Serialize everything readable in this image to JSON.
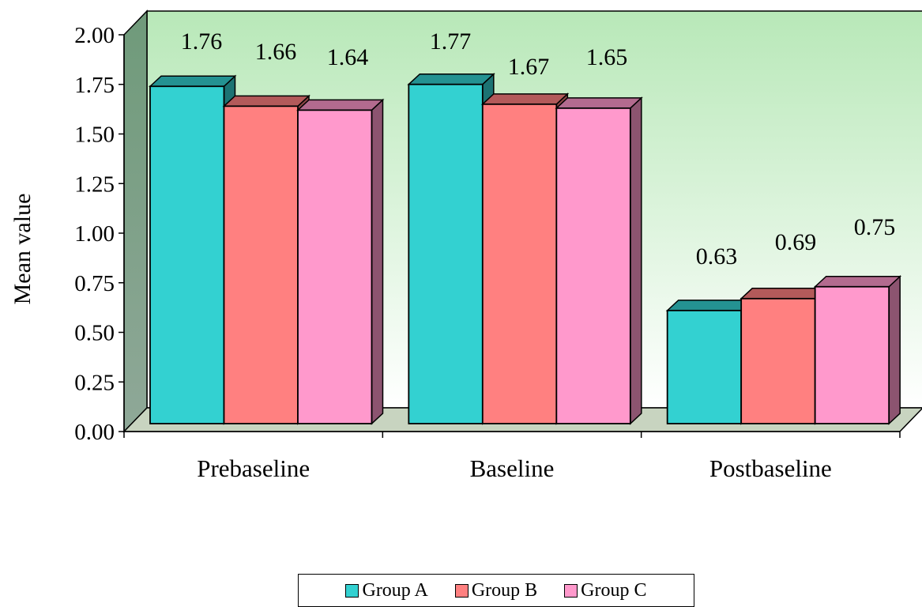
{
  "chart_data": {
    "type": "bar",
    "title": "",
    "xlabel": "",
    "ylabel": "Mean value",
    "ylim": [
      0,
      2
    ],
    "yticks": [
      "0.00",
      "0.25",
      "0.50",
      "0.75",
      "1.00",
      "1.25",
      "1.50",
      "1.75",
      "2.00"
    ],
    "categories": [
      "Prebaseline",
      "Baseline",
      "Postbaseline"
    ],
    "series": [
      {
        "name": "Group A",
        "color": "#33d1d1",
        "values": [
          1.76,
          1.77,
          0.63
        ],
        "labels": [
          "1.76",
          "1.77",
          "0.63"
        ]
      },
      {
        "name": "Group B",
        "color": "#ff8080",
        "values": [
          1.66,
          1.67,
          0.69
        ],
        "labels": [
          "1.66",
          "1.67",
          "0.69"
        ]
      },
      {
        "name": "Group C",
        "color": "#ff99cc",
        "values": [
          1.64,
          1.65,
          0.75
        ],
        "labels": [
          "1.64",
          "1.65",
          "0.75"
        ]
      }
    ],
    "grid": false,
    "legend_position": "bottom",
    "style": "3d-clustered-column",
    "wall_gradient": [
      "#b8e8b8",
      "#ffffff"
    ],
    "floor_color": "#c8d4c0"
  }
}
